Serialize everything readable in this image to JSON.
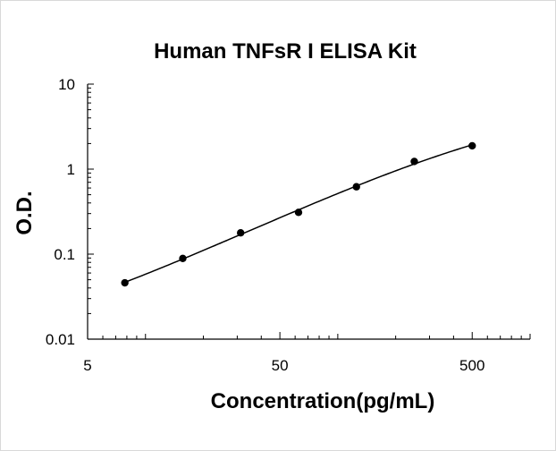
{
  "chart_data": {
    "type": "scatter",
    "title": "Human TNFsR I ELISA Kit",
    "xlabel": "Concentration(pg/mL)",
    "ylabel": "O.D.",
    "x_scale": "log",
    "y_scale": "log",
    "xlim": [
      5,
      1000
    ],
    "ylim": [
      0.01,
      10
    ],
    "x_ticks": [
      {
        "value": 5,
        "label": "5"
      },
      {
        "value": 50,
        "label": "50"
      },
      {
        "value": 500,
        "label": "500"
      }
    ],
    "y_ticks": [
      {
        "value": 0.01,
        "label": "0.01"
      },
      {
        "value": 0.1,
        "label": "0.1"
      },
      {
        "value": 1,
        "label": "1"
      },
      {
        "value": 10,
        "label": "10"
      }
    ],
    "grid": false,
    "legend": "none",
    "series": [
      {
        "x": [
          7.81,
          15.63,
          31.25,
          62.5,
          125,
          250,
          500
        ],
        "y": [
          0.046,
          0.089,
          0.178,
          0.31,
          0.62,
          1.23,
          1.88
        ],
        "marker_color": "#000000",
        "fit_curve": true
      }
    ]
  }
}
